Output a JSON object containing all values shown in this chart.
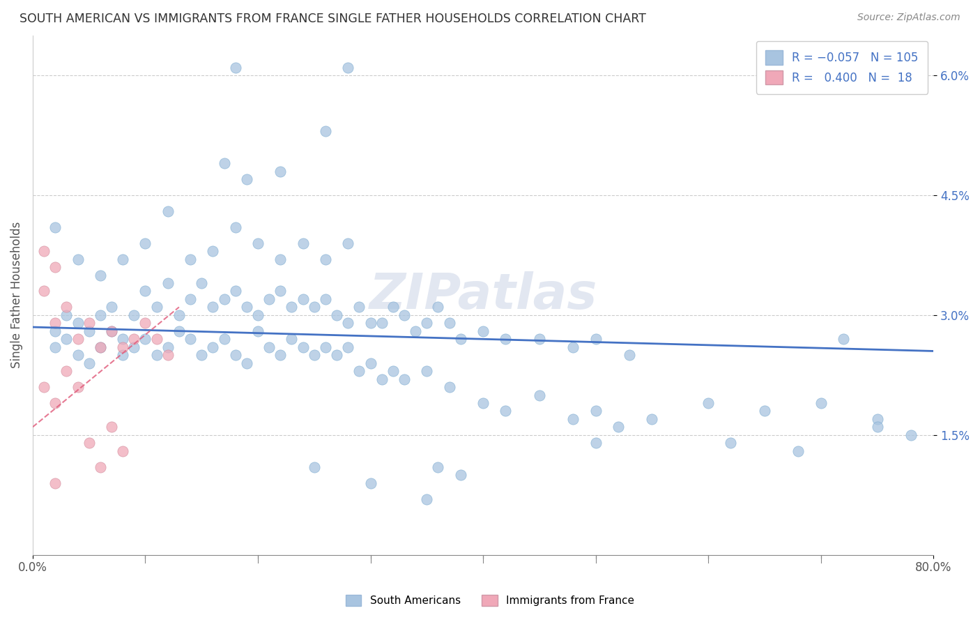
{
  "title": "SOUTH AMERICAN VS IMMIGRANTS FROM FRANCE SINGLE FATHER HOUSEHOLDS CORRELATION CHART",
  "source": "Source: ZipAtlas.com",
  "ylabel": "Single Father Households",
  "xlim": [
    0.0,
    0.8
  ],
  "ylim": [
    0.0,
    0.065
  ],
  "xticks": [
    0.0,
    0.1,
    0.2,
    0.3,
    0.4,
    0.5,
    0.6,
    0.7,
    0.8
  ],
  "xticklabels": [
    "0.0%",
    "",
    "",
    "",
    "",
    "",
    "",
    "",
    "80.0%"
  ],
  "yticks": [
    0.015,
    0.03,
    0.045,
    0.06
  ],
  "yticklabels": [
    "1.5%",
    "3.0%",
    "4.5%",
    "6.0%"
  ],
  "color_blue": "#a8c4e0",
  "color_pink": "#f0a8b8",
  "line_blue": "#4472c4",
  "line_pink": "#e05878",
  "watermark": "ZIPatlas",
  "blue_line_x0": 0.0,
  "blue_line_y0": 0.0285,
  "blue_line_x1": 0.8,
  "blue_line_y1": 0.0255,
  "pink_line_x0": 0.0,
  "pink_line_y0": 0.016,
  "pink_line_x1": 0.13,
  "pink_line_y1": 0.031,
  "blue_scatter": [
    [
      0.02,
      0.028
    ],
    [
      0.03,
      0.03
    ],
    [
      0.04,
      0.029
    ],
    [
      0.05,
      0.028
    ],
    [
      0.06,
      0.03
    ],
    [
      0.07,
      0.031
    ],
    [
      0.08,
      0.027
    ],
    [
      0.09,
      0.03
    ],
    [
      0.1,
      0.033
    ],
    [
      0.11,
      0.031
    ],
    [
      0.12,
      0.034
    ],
    [
      0.13,
      0.03
    ],
    [
      0.14,
      0.032
    ],
    [
      0.15,
      0.034
    ],
    [
      0.16,
      0.031
    ],
    [
      0.17,
      0.032
    ],
    [
      0.18,
      0.033
    ],
    [
      0.19,
      0.031
    ],
    [
      0.2,
      0.03
    ],
    [
      0.21,
      0.032
    ],
    [
      0.22,
      0.033
    ],
    [
      0.23,
      0.031
    ],
    [
      0.24,
      0.032
    ],
    [
      0.25,
      0.031
    ],
    [
      0.26,
      0.032
    ],
    [
      0.27,
      0.03
    ],
    [
      0.28,
      0.029
    ],
    [
      0.29,
      0.031
    ],
    [
      0.3,
      0.029
    ],
    [
      0.31,
      0.029
    ],
    [
      0.32,
      0.031
    ],
    [
      0.33,
      0.03
    ],
    [
      0.34,
      0.028
    ],
    [
      0.35,
      0.029
    ],
    [
      0.36,
      0.031
    ],
    [
      0.37,
      0.029
    ],
    [
      0.38,
      0.027
    ],
    [
      0.4,
      0.028
    ],
    [
      0.42,
      0.027
    ],
    [
      0.45,
      0.027
    ],
    [
      0.48,
      0.026
    ],
    [
      0.5,
      0.027
    ],
    [
      0.53,
      0.025
    ],
    [
      0.72,
      0.027
    ],
    [
      0.02,
      0.026
    ],
    [
      0.03,
      0.027
    ],
    [
      0.04,
      0.025
    ],
    [
      0.05,
      0.024
    ],
    [
      0.06,
      0.026
    ],
    [
      0.07,
      0.028
    ],
    [
      0.08,
      0.025
    ],
    [
      0.09,
      0.026
    ],
    [
      0.1,
      0.027
    ],
    [
      0.11,
      0.025
    ],
    [
      0.12,
      0.026
    ],
    [
      0.13,
      0.028
    ],
    [
      0.14,
      0.027
    ],
    [
      0.15,
      0.025
    ],
    [
      0.16,
      0.026
    ],
    [
      0.17,
      0.027
    ],
    [
      0.18,
      0.025
    ],
    [
      0.19,
      0.024
    ],
    [
      0.2,
      0.028
    ],
    [
      0.21,
      0.026
    ],
    [
      0.22,
      0.025
    ],
    [
      0.23,
      0.027
    ],
    [
      0.24,
      0.026
    ],
    [
      0.25,
      0.025
    ],
    [
      0.26,
      0.026
    ],
    [
      0.27,
      0.025
    ],
    [
      0.28,
      0.026
    ],
    [
      0.29,
      0.023
    ],
    [
      0.3,
      0.024
    ],
    [
      0.31,
      0.022
    ],
    [
      0.32,
      0.023
    ],
    [
      0.33,
      0.022
    ],
    [
      0.35,
      0.023
    ],
    [
      0.37,
      0.021
    ],
    [
      0.4,
      0.019
    ],
    [
      0.42,
      0.018
    ],
    [
      0.45,
      0.02
    ],
    [
      0.48,
      0.017
    ],
    [
      0.5,
      0.018
    ],
    [
      0.55,
      0.017
    ],
    [
      0.6,
      0.019
    ],
    [
      0.65,
      0.018
    ],
    [
      0.7,
      0.019
    ],
    [
      0.75,
      0.017
    ],
    [
      0.02,
      0.041
    ],
    [
      0.04,
      0.037
    ],
    [
      0.06,
      0.035
    ],
    [
      0.08,
      0.037
    ],
    [
      0.1,
      0.039
    ],
    [
      0.12,
      0.043
    ],
    [
      0.14,
      0.037
    ],
    [
      0.16,
      0.038
    ],
    [
      0.18,
      0.041
    ],
    [
      0.2,
      0.039
    ],
    [
      0.22,
      0.037
    ],
    [
      0.24,
      0.039
    ],
    [
      0.26,
      0.037
    ],
    [
      0.28,
      0.039
    ],
    [
      0.17,
      0.049
    ],
    [
      0.19,
      0.047
    ],
    [
      0.22,
      0.048
    ],
    [
      0.26,
      0.053
    ],
    [
      0.28,
      0.061
    ],
    [
      0.18,
      0.061
    ],
    [
      0.25,
      0.011
    ],
    [
      0.3,
      0.009
    ],
    [
      0.35,
      0.007
    ],
    [
      0.36,
      0.011
    ],
    [
      0.38,
      0.01
    ],
    [
      0.5,
      0.014
    ],
    [
      0.52,
      0.016
    ],
    [
      0.62,
      0.014
    ],
    [
      0.68,
      0.013
    ],
    [
      0.75,
      0.016
    ],
    [
      0.78,
      0.015
    ]
  ],
  "pink_scatter": [
    [
      0.01,
      0.033
    ],
    [
      0.02,
      0.029
    ],
    [
      0.03,
      0.031
    ],
    [
      0.04,
      0.027
    ],
    [
      0.05,
      0.029
    ],
    [
      0.06,
      0.026
    ],
    [
      0.07,
      0.028
    ],
    [
      0.08,
      0.026
    ],
    [
      0.09,
      0.027
    ],
    [
      0.1,
      0.029
    ],
    [
      0.11,
      0.027
    ],
    [
      0.12,
      0.025
    ],
    [
      0.01,
      0.038
    ],
    [
      0.02,
      0.036
    ],
    [
      0.01,
      0.021
    ],
    [
      0.02,
      0.019
    ],
    [
      0.03,
      0.023
    ],
    [
      0.04,
      0.021
    ],
    [
      0.05,
      0.014
    ],
    [
      0.06,
      0.011
    ],
    [
      0.07,
      0.016
    ],
    [
      0.08,
      0.013
    ],
    [
      0.02,
      0.009
    ]
  ]
}
